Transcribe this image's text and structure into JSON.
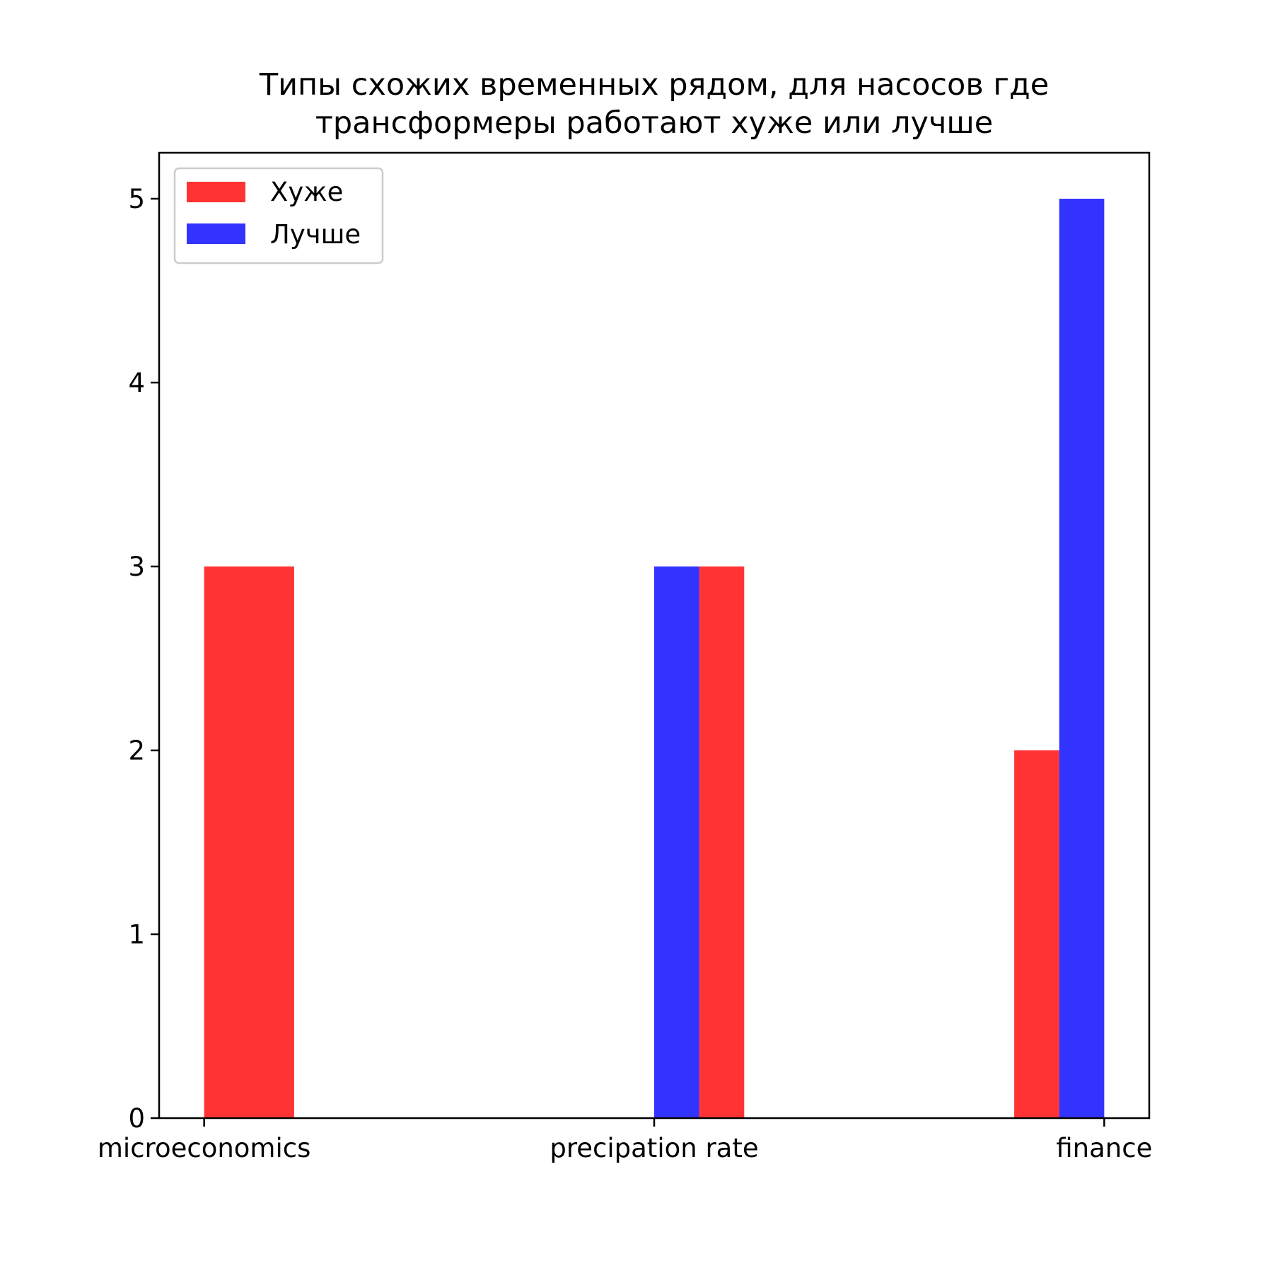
{
  "chart_data": {
    "type": "bar",
    "title_lines": [
      "Типы схожих временных рядом, для насосов где",
      "трансформеры работают хуже или лучше"
    ],
    "xlabel": "",
    "ylabel": "",
    "categories": [
      "microeconomics",
      "precipation rate",
      "finance"
    ],
    "x_range": [
      -0.1,
      2.1
    ],
    "ylim": [
      0,
      5.25
    ],
    "yticks": [
      0,
      1,
      2,
      3,
      4,
      5
    ],
    "grid": false,
    "legend_position": "upper-left",
    "series": [
      {
        "name": "Хуже",
        "color": "#ff0000",
        "opacity": 0.8,
        "bars": [
          {
            "x0": 0.0,
            "x1": 0.2,
            "value": 3
          },
          {
            "x0": 1.1,
            "x1": 1.2,
            "value": 3
          },
          {
            "x0": 1.8,
            "x1": 1.9,
            "value": 2
          }
        ]
      },
      {
        "name": "Лучше",
        "color": "#0000ff",
        "opacity": 0.8,
        "bars": [
          {
            "x0": 1.0,
            "x1": 1.1,
            "value": 3
          },
          {
            "x0": 1.9,
            "x1": 2.0,
            "value": 5
          }
        ]
      }
    ]
  }
}
